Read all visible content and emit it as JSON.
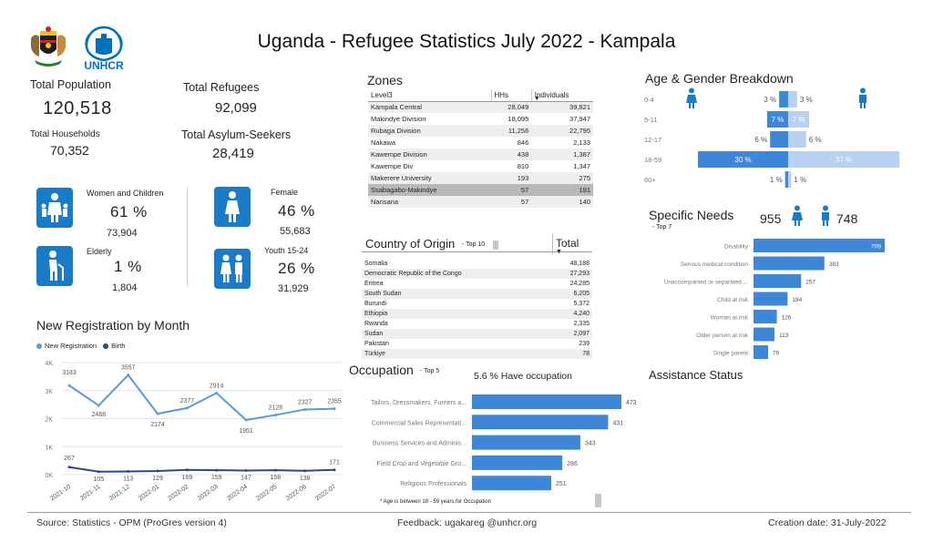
{
  "title": "Uganda - Refugee Statistics July 2022 - Kampala",
  "logos": {
    "coat_of_arms": "uganda-coat-of-arms",
    "unhcr": "UNHCR"
  },
  "kpis": {
    "total_population": {
      "label": "Total Population",
      "value": "120,518"
    },
    "total_households": {
      "label": "Total Households",
      "value": "70,352"
    },
    "total_refugees": {
      "label": "Total Refugees",
      "value": "92,099"
    },
    "total_asylum_seekers": {
      "label": "Total Asylum-Seekers",
      "value": "28,419"
    },
    "women_children": {
      "label": "Women and Children",
      "percent": "61 %",
      "value": "73,904",
      "icon": "woman-children-icon"
    },
    "elderly": {
      "label": "Elderly",
      "percent": "1 %",
      "value": "1,804",
      "icon": "elderly-icon"
    },
    "female": {
      "label": "Female",
      "percent": "46 %",
      "value": "55,683",
      "icon": "female-icon"
    },
    "youth": {
      "label": "Youth 15-24",
      "percent": "26 %",
      "value": "31,929",
      "icon": "youth-icon"
    }
  },
  "zones": {
    "title": "Zones",
    "headers": [
      "Level3",
      "HHs",
      "Individuals"
    ],
    "rows": [
      [
        "Kampala Central",
        "28,049",
        "39,821"
      ],
      [
        "Makindye Division",
        "18,095",
        "37,947"
      ],
      [
        "Rubaga Division",
        "11,256",
        "22,795"
      ],
      [
        "Nakawa",
        "846",
        "2,133"
      ],
      [
        "Kawempe Division",
        "438",
        "1,387"
      ],
      [
        "Kawempe Div",
        "810",
        "1,347"
      ],
      [
        "Makerere University",
        "193",
        "275"
      ],
      [
        "Ssabagabo-Makindye",
        "57",
        "191"
      ],
      [
        "Nansana",
        "57",
        "140"
      ]
    ]
  },
  "country_of_origin": {
    "title": "Country of Origin",
    "subtitle": "- Top 10",
    "total_label": "Total",
    "rows": [
      [
        "Somalia",
        "48,188"
      ],
      [
        "Democratic Republic of the Congo",
        "27,293"
      ],
      [
        "Eritrea",
        "24,285"
      ],
      [
        "South Sudan",
        "6,205"
      ],
      [
        "Burundi",
        "5,372"
      ],
      [
        "Ethiopia",
        "4,240"
      ],
      [
        "Rwanda",
        "2,335"
      ],
      [
        "Sudan",
        "2,097"
      ],
      [
        "Pakistan",
        "239"
      ],
      [
        "Türkiye",
        "78"
      ]
    ]
  },
  "age_gender": {
    "title": "Age & Gender Breakdown",
    "female_icon": "female-icon",
    "male_icon": "male-icon",
    "colors": {
      "female": "#3d86d8",
      "male": "#b7d2f0"
    }
  },
  "specific_needs": {
    "title": "Specific Needs",
    "subtitle": "- Top 7",
    "female_count": "955",
    "male_count": "748",
    "female_icon": "female-icon",
    "male_icon": "male-icon"
  },
  "occupation": {
    "title": "Occupation",
    "subtitle": "- Top 5",
    "have_occupation": "5.6 % Have occupation",
    "note": "* Age is between 18 - 59 years for Occupation"
  },
  "assistance": {
    "title": "Assistance Status"
  },
  "registration": {
    "title": "New Registration by Month",
    "legend_new": "New Registration",
    "legend_birth": "Birth",
    "colors": {
      "new": "#5b9bd5",
      "birth": "#2e4a7d"
    }
  },
  "footer": {
    "source": "Source: Statistics - OPM (ProGres version 4)",
    "feedback": "Feedback: ugakareg @unhcr.org",
    "creation": "Creation date: 31-July-2022"
  },
  "chart_data": [
    {
      "type": "line",
      "title": "New Registration by Month",
      "x": [
        "2021-10",
        "2021-11",
        "2021-12",
        "2022-01",
        "2022-02",
        "2022-03",
        "2022-04",
        "2022-05",
        "2022-06",
        "2022-07"
      ],
      "series": [
        {
          "name": "New Registration",
          "values": [
            3183,
            2468,
            3557,
            2174,
            2377,
            2914,
            1951,
            2128,
            2327,
            2355
          ]
        },
        {
          "name": "Birth",
          "values": [
            267,
            105,
            113,
            129,
            169,
            159,
            147,
            158,
            138,
            171
          ]
        }
      ],
      "ylim": [
        0,
        4000
      ],
      "yticks": [
        "0K",
        "1K",
        "2K",
        "3K",
        "4K"
      ],
      "legend": "top-left",
      "grid": true
    },
    {
      "type": "bar",
      "title": "Age & Gender Breakdown",
      "categories": [
        "0-4",
        "5-11",
        "12-17",
        "18-59",
        "60+"
      ],
      "series": [
        {
          "name": "Female",
          "values": [
            3,
            7,
            6,
            30,
            1
          ],
          "labels": [
            "3 %",
            "7 %",
            "6 %",
            "30 %",
            "1 %"
          ]
        },
        {
          "name": "Male",
          "values": [
            3,
            7,
            6,
            37,
            1
          ],
          "labels": [
            "3 %",
            "7 %",
            "6 %",
            "37 %",
            "1 %"
          ]
        }
      ]
    },
    {
      "type": "bar",
      "title": "Specific Needs",
      "categories": [
        "Disability",
        "Serious medical condition",
        "Unaccompanied or separated ...",
        "Child at risk",
        "Woman at risk",
        "Older person at risk",
        "Single parent"
      ],
      "values": [
        709,
        383,
        257,
        184,
        126,
        113,
        79
      ]
    },
    {
      "type": "bar",
      "title": "Occupation",
      "categories": [
        "Tailors, Dressmakers, Furriers a...",
        "Commercial Sales Representati...",
        "Business Services and Adminis...",
        "Field Crop and Vegetable Gro...",
        "Religious Professionals"
      ],
      "values": [
        473,
        431,
        343,
        286,
        251
      ]
    }
  ]
}
